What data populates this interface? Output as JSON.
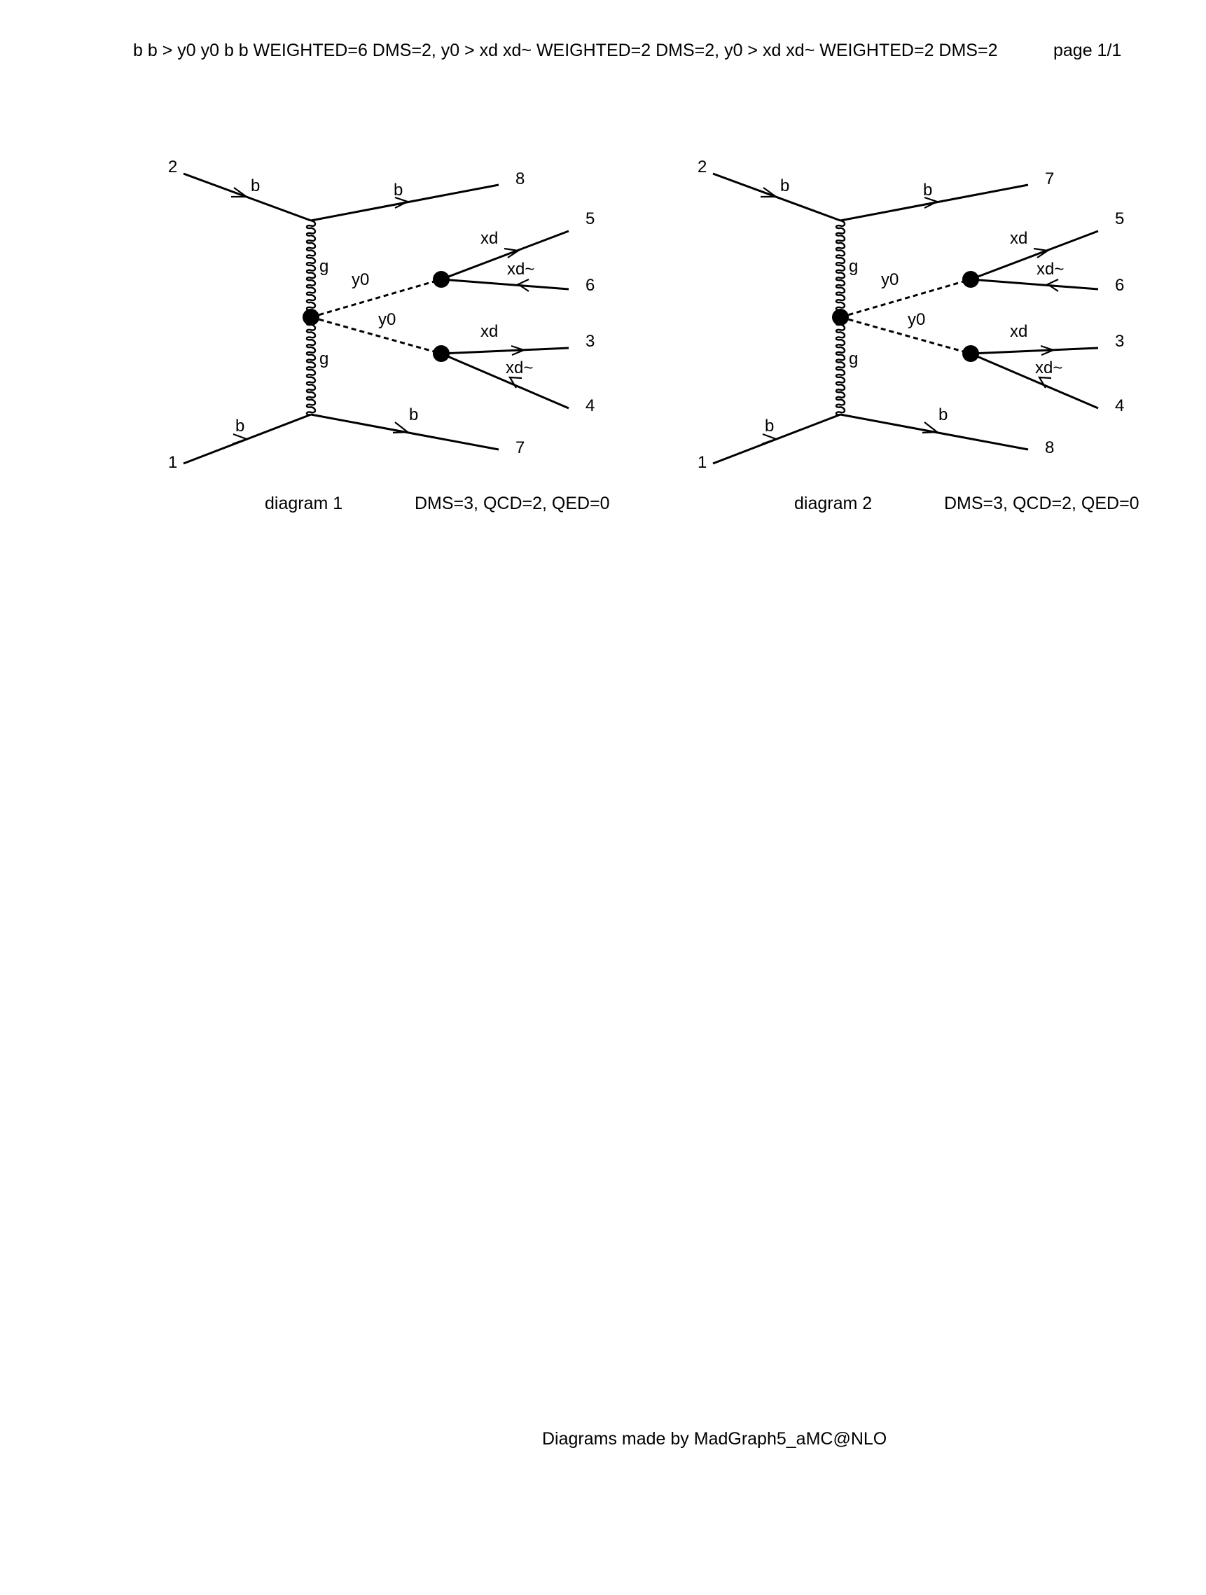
{
  "header": {
    "process": "b b > y0 y0 b b WEIGHTED=6 DMS=2, y0 > xd xd~ WEIGHTED=2 DMS=2, y0 > xd xd~ WEIGHTED=2 DMS=2",
    "page": "page 1/1"
  },
  "diagrams": [
    {
      "title": "diagram 1",
      "couplings": "DMS=3, QCD=2, QED=0",
      "external": {
        "top_in": "2",
        "bottom_in": "1",
        "top_out": "8",
        "bottom_out": "7",
        "upper_a": "5",
        "upper_b": "6",
        "lower_a": "3",
        "lower_b": "4"
      },
      "labels": {
        "b_top_in": "b",
        "b_top_out": "b",
        "b_bottom_in": "b",
        "b_bottom_out": "b",
        "g_top": "g",
        "g_bottom": "g",
        "y0_upper": "y0",
        "y0_lower": "y0",
        "xd_upper": "xd",
        "xdbar_upper": "xd~",
        "xd_lower": "xd",
        "xdbar_lower": "xd~"
      }
    },
    {
      "title": "diagram 2",
      "couplings": "DMS=3, QCD=2, QED=0",
      "external": {
        "top_in": "2",
        "bottom_in": "1",
        "top_out": "7",
        "bottom_out": "8",
        "upper_a": "5",
        "upper_b": "6",
        "lower_a": "3",
        "lower_b": "4"
      },
      "labels": {
        "b_top_in": "b",
        "b_top_out": "b",
        "b_bottom_in": "b",
        "b_bottom_out": "b",
        "g_top": "g",
        "g_bottom": "g",
        "y0_upper": "y0",
        "y0_lower": "y0",
        "xd_upper": "xd",
        "xdbar_upper": "xd~",
        "xd_lower": "xd",
        "xdbar_lower": "xd~"
      }
    }
  ],
  "footer": "Diagrams made by MadGraph5_aMC@NLO"
}
